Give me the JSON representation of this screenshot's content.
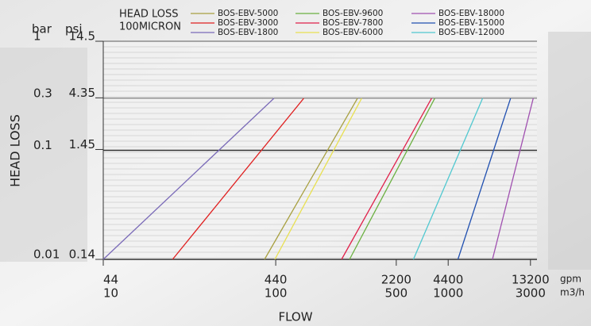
{
  "chart_data": {
    "type": "line",
    "legend_title": [
      "HEAD LOSS",
      "100MICRON"
    ],
    "y_unit": "bar",
    "y2_unit": "psi",
    "x_unit": "gpm",
    "x2_unit": "m3/h",
    "y_label": "HEAD LOSS",
    "x_label": "FLOW",
    "log_x": true,
    "log_y": true,
    "xlim": [
      44,
      14400
    ],
    "xticks": [
      44,
      440,
      2200,
      4400,
      13200
    ],
    "x2lim": [
      10,
      3273
    ],
    "x2ticks": [
      10,
      100,
      500,
      1000,
      3000
    ],
    "ylim": [
      0.01,
      1
    ],
    "yticks": [
      0.01,
      0.1,
      0.3,
      1
    ],
    "y2lim": [
      0.14,
      14.5
    ],
    "y2ticks": [
      0.14,
      1.45,
      4.35,
      14.5
    ],
    "series": [
      {
        "name": "BOS-EBV-5000",
        "color": "#a8a040",
        "x": [
          379,
          1311
        ],
        "values": [
          0.01,
          0.3
        ]
      },
      {
        "name": "BOS-EBV-3000",
        "color": "#e02020",
        "x": [
          111,
          640
        ],
        "values": [
          0.01,
          0.3
        ]
      },
      {
        "name": "BOS-EBV-1800",
        "color": "#7a6ab8",
        "x": [
          44,
          430
        ],
        "values": [
          0.01,
          0.3
        ]
      },
      {
        "name": "BOS-EBV-9600",
        "color": "#6ab040",
        "x": [
          1179,
          3680
        ],
        "values": [
          0.01,
          0.3
        ]
      },
      {
        "name": "BOS-EBV-7800",
        "color": "#e0204a",
        "x": [
          1060,
          3526
        ],
        "values": [
          0.01,
          0.3
        ]
      },
      {
        "name": "BOS-EBV-6000",
        "color": "#e8e050",
        "x": [
          435,
          1386
        ],
        "values": [
          0.01,
          0.3
        ]
      },
      {
        "name": "BOS-EBV-18000",
        "color": "#a050b0",
        "x": [
          7946,
          13700
        ],
        "values": [
          0.01,
          0.3
        ]
      },
      {
        "name": "BOS-EBV-15000",
        "color": "#2050b0",
        "x": [
          5011,
          10123
        ],
        "values": [
          0.01,
          0.3
        ]
      },
      {
        "name": "BOS-EBV-12000",
        "color": "#50c8d0",
        "x": [
          2766,
          6968
        ],
        "values": [
          0.01,
          0.3
        ]
      }
    ]
  }
}
